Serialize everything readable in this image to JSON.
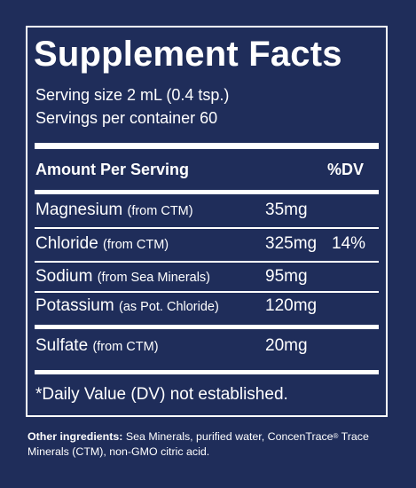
{
  "title": "Supplement Facts",
  "serving_size": "Serving size 2 mL (0.4 tsp.)",
  "servings_per_container": "Servings per container 60",
  "header": {
    "amount_per_serving": "Amount Per Serving",
    "dv": "%DV"
  },
  "nutrients": [
    {
      "name": "Magnesium",
      "source": "(from CTM)",
      "amount": "35mg",
      "dv": ""
    },
    {
      "name": "Chloride",
      "source": "(from CTM)",
      "amount": "325mg",
      "dv": "14%"
    },
    {
      "name": "Sodium",
      "source": "(from Sea Minerals)",
      "amount": "95mg",
      "dv": ""
    },
    {
      "name": "Potassium",
      "source": "(as Pot. Chloride)",
      "amount": "120mg",
      "dv": ""
    },
    {
      "name": "Sulfate",
      "source": "(from CTM)",
      "amount": "20mg",
      "dv": ""
    }
  ],
  "footnote": "*Daily Value (DV) not established.",
  "other_ingredients": {
    "label": "Other ingredients:",
    "text_before_mark": " Sea Minerals, purified water, ConcenTrace",
    "mark": "®",
    "text_after_mark": " Trace Minerals (CTM), non-GMO citric acid."
  },
  "colors": {
    "background": "#1f2d5a",
    "text": "#ffffff"
  }
}
